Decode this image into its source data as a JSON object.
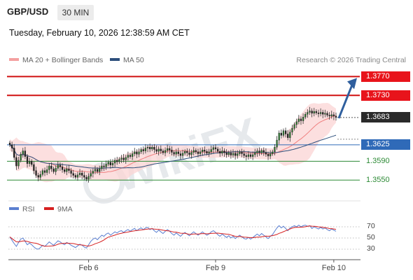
{
  "header": {
    "symbol": "GBP/USD",
    "timeframe": "30 MIN",
    "datetime": "Tuesday, February 10, 2026 12:38:59 AM CET"
  },
  "legend": {
    "ma20_label": "MA 20 + Bollinger Bands",
    "ma20_color": "#f08080",
    "ma50_label": "MA 50",
    "ma50_color": "#2d4f7c",
    "research": "Research © 2026 Trading Central"
  },
  "rsi_legend": {
    "rsi_label": "RSI",
    "rsi_color": "#5b7fd0",
    "ma9_label": "9MA",
    "ma9_color": "#d62020"
  },
  "chart_data": {
    "type": "candlestick",
    "price_range": [
      1.3528,
      1.379
    ],
    "levels": [
      {
        "value": 1.377,
        "label": "1.3770",
        "kind": "resistance",
        "color": "#d01010"
      },
      {
        "value": 1.373,
        "label": "1.3730",
        "kind": "resistance",
        "color": "#d01010"
      },
      {
        "value": 1.3683,
        "label": "1.3683",
        "kind": "last-price",
        "color": "#2a2a2a"
      },
      {
        "value": 1.3625,
        "label": "1.3625",
        "kind": "pivot",
        "color": "#2f6ab8"
      },
      {
        "value": 1.359,
        "label": "1.3590",
        "kind": "support",
        "color": "#2c8a35"
      },
      {
        "value": 1.355,
        "label": "1.3550",
        "kind": "support",
        "color": "#2c8a35"
      }
    ],
    "x_labels": [
      "Feb 6",
      "Feb 9",
      "Feb 10"
    ],
    "x_label_candle_index": [
      36,
      94,
      148
    ],
    "closes": [
      1.3625,
      1.3618,
      1.3598,
      1.358,
      1.3592,
      1.3605,
      1.3612,
      1.36,
      1.3585,
      1.359,
      1.3583,
      1.357,
      1.356,
      1.3556,
      1.3562,
      1.357,
      1.3566,
      1.3572,
      1.358,
      1.3574,
      1.3568,
      1.3575,
      1.3582,
      1.3578,
      1.3572,
      1.3568,
      1.3574,
      1.357,
      1.3564,
      1.356,
      1.3556,
      1.3561,
      1.3565,
      1.356,
      1.3556,
      1.3552,
      1.3558,
      1.3564,
      1.3569,
      1.3573,
      1.3568,
      1.3574,
      1.358,
      1.3578,
      1.3584,
      1.3588,
      1.3582,
      1.3586,
      1.3592,
      1.3589,
      1.3594,
      1.3597,
      1.3593,
      1.3598,
      1.3603,
      1.36,
      1.3606,
      1.361,
      1.3605,
      1.361,
      1.3615,
      1.3612,
      1.3618,
      1.362,
      1.3616,
      1.362,
      1.3615,
      1.3611,
      1.3616,
      1.3612,
      1.3608,
      1.3613,
      1.3617,
      1.3614,
      1.3609,
      1.3605,
      1.361,
      1.3606,
      1.3602,
      1.3607,
      1.3611,
      1.3608,
      1.3604,
      1.3609,
      1.3613,
      1.361,
      1.3606,
      1.361,
      1.3614,
      1.3611,
      1.3607,
      1.361,
      1.3615,
      1.3619,
      1.3616,
      1.3611,
      1.3607,
      1.3612,
      1.3608,
      1.3604,
      1.3608,
      1.3603,
      1.3607,
      1.3602,
      1.3606,
      1.361,
      1.3606,
      1.3602,
      1.36,
      1.3604,
      1.36,
      1.3604,
      1.3608,
      1.3612,
      1.3608,
      1.3613,
      1.3609,
      1.3605,
      1.3601,
      1.3606,
      1.361,
      1.362,
      1.3635,
      1.365,
      1.3645,
      1.3655,
      1.3648,
      1.364,
      1.3652,
      1.366,
      1.3668,
      1.3674,
      1.368,
      1.3676,
      1.3684,
      1.369,
      1.3694,
      1.3697,
      1.3692,
      1.3696,
      1.3693,
      1.3691,
      1.3694,
      1.369,
      1.3692,
      1.3688,
      1.3686,
      1.3689,
      1.3686,
      1.3683
    ],
    "rsi": {
      "ticks": [
        70,
        50,
        30
      ],
      "range": [
        20,
        80
      ],
      "values": [
        52,
        46,
        40,
        35,
        42,
        48,
        50,
        44,
        38,
        41,
        38,
        34,
        31,
        30,
        33,
        37,
        35,
        39,
        43,
        40,
        37,
        41,
        45,
        43,
        40,
        38,
        42,
        40,
        37,
        35,
        33,
        36,
        39,
        37,
        34,
        32,
        38,
        44,
        48,
        50,
        47,
        51,
        55,
        53,
        57,
        59,
        55,
        58,
        61,
        59,
        62,
        63,
        60,
        63,
        65,
        62,
        65,
        67,
        63,
        66,
        68,
        65,
        68,
        69,
        65,
        67,
        63,
        60,
        64,
        61,
        58,
        62,
        65,
        62,
        58,
        55,
        59,
        56,
        53,
        57,
        60,
        57,
        54,
        58,
        61,
        58,
        55,
        58,
        61,
        58,
        55,
        57,
        61,
        63,
        60,
        56,
        53,
        57,
        54,
        51,
        54,
        50,
        53,
        49,
        52,
        55,
        52,
        49,
        48,
        51,
        48,
        51,
        54,
        57,
        54,
        58,
        55,
        52,
        49,
        53,
        56,
        62,
        68,
        72,
        68,
        71,
        67,
        63,
        68,
        70,
        72,
        70,
        73,
        70,
        72,
        73,
        71,
        72,
        67,
        70,
        68,
        66,
        69,
        66,
        68,
        65,
        63,
        66,
        64,
        62
      ]
    }
  }
}
